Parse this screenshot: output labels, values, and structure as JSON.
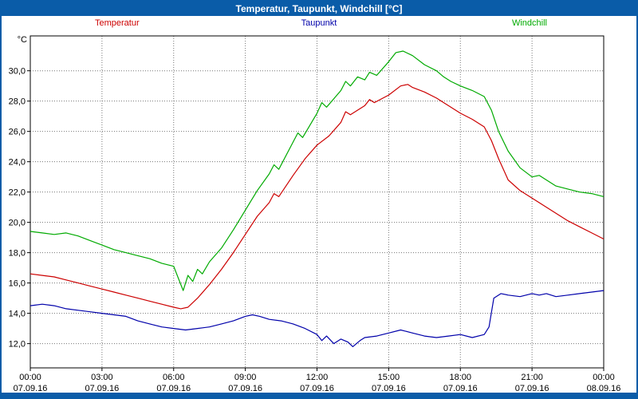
{
  "window": {
    "title": "Temperatur, Taupunkt, Windchill [°C]"
  },
  "colors": {
    "titlebar": "#0a5ca8",
    "border": "#0a5ca8",
    "grid": "#777777",
    "temperatur": "#cc0000",
    "taupunkt": "#0000aa",
    "windchill": "#00aa00"
  },
  "chart_data": {
    "type": "line",
    "title": "Temperatur, Taupunkt, Windchill [°C]",
    "ylabel": "°C",
    "xlabel": "",
    "grid": "dotted",
    "legend_position": "top",
    "ylim": [
      10.4,
      32.3
    ],
    "yticks": [
      12,
      14,
      16,
      18,
      20,
      22,
      24,
      26,
      28,
      30
    ],
    "ytick_labels": [
      "12,0",
      "14,0",
      "16,0",
      "18,0",
      "20,0",
      "22,0",
      "24,0",
      "26,0",
      "28,0",
      "30,0"
    ],
    "x_unit": "hours",
    "xlim": [
      0,
      24
    ],
    "xticks": [
      0,
      3,
      6,
      9,
      12,
      15,
      18,
      21,
      24
    ],
    "xtick_labels": [
      "00:00",
      "03:00",
      "06:00",
      "09:00",
      "12:00",
      "15:00",
      "18:00",
      "21:00",
      "00:00"
    ],
    "xtick_dates": [
      "07.09.16",
      "07.09.16",
      "07.09.16",
      "07.09.16",
      "07.09.16",
      "07.09.16",
      "07.09.16",
      "07.09.16",
      "08.09.16"
    ],
    "series": [
      {
        "name": "Temperatur",
        "color": "#cc0000",
        "points": [
          [
            0,
            16.6
          ],
          [
            0.5,
            16.5
          ],
          [
            1,
            16.4
          ],
          [
            1.5,
            16.2
          ],
          [
            2,
            16.0
          ],
          [
            2.5,
            15.8
          ],
          [
            3,
            15.6
          ],
          [
            3.5,
            15.4
          ],
          [
            4,
            15.2
          ],
          [
            4.5,
            15.0
          ],
          [
            5,
            14.8
          ],
          [
            5.5,
            14.6
          ],
          [
            6,
            14.4
          ],
          [
            6.3,
            14.3
          ],
          [
            6.6,
            14.4
          ],
          [
            7,
            15.0
          ],
          [
            7.5,
            15.9
          ],
          [
            8,
            16.9
          ],
          [
            8.5,
            18.0
          ],
          [
            9,
            19.2
          ],
          [
            9.5,
            20.4
          ],
          [
            10,
            21.3
          ],
          [
            10.2,
            21.9
          ],
          [
            10.4,
            21.7
          ],
          [
            11,
            23.1
          ],
          [
            11.5,
            24.2
          ],
          [
            12,
            25.1
          ],
          [
            12.5,
            25.7
          ],
          [
            13,
            26.6
          ],
          [
            13.2,
            27.3
          ],
          [
            13.4,
            27.1
          ],
          [
            14,
            27.7
          ],
          [
            14.2,
            28.1
          ],
          [
            14.4,
            27.9
          ],
          [
            15,
            28.4
          ],
          [
            15.5,
            29.0
          ],
          [
            15.8,
            29.1
          ],
          [
            16,
            28.9
          ],
          [
            16.5,
            28.6
          ],
          [
            17,
            28.2
          ],
          [
            17.5,
            27.7
          ],
          [
            18,
            27.2
          ],
          [
            18.5,
            26.8
          ],
          [
            19,
            26.3
          ],
          [
            19.3,
            25.4
          ],
          [
            19.6,
            24.2
          ],
          [
            20,
            22.8
          ],
          [
            20.5,
            22.1
          ],
          [
            21,
            21.6
          ],
          [
            21.5,
            21.1
          ],
          [
            22,
            20.6
          ],
          [
            22.5,
            20.1
          ],
          [
            23,
            19.7
          ],
          [
            23.5,
            19.3
          ],
          [
            24,
            18.9
          ]
        ]
      },
      {
        "name": "Taupunkt",
        "color": "#0000aa",
        "points": [
          [
            0,
            14.5
          ],
          [
            0.5,
            14.6
          ],
          [
            1,
            14.5
          ],
          [
            1.5,
            14.3
          ],
          [
            2,
            14.2
          ],
          [
            2.5,
            14.1
          ],
          [
            3,
            14.0
          ],
          [
            3.5,
            13.9
          ],
          [
            4,
            13.8
          ],
          [
            4.5,
            13.5
          ],
          [
            5,
            13.3
          ],
          [
            5.5,
            13.1
          ],
          [
            6,
            13.0
          ],
          [
            6.5,
            12.9
          ],
          [
            7,
            13.0
          ],
          [
            7.5,
            13.1
          ],
          [
            8,
            13.3
          ],
          [
            8.5,
            13.5
          ],
          [
            9,
            13.8
          ],
          [
            9.3,
            13.9
          ],
          [
            9.6,
            13.8
          ],
          [
            10,
            13.6
          ],
          [
            10.5,
            13.5
          ],
          [
            11,
            13.3
          ],
          [
            11.5,
            13.0
          ],
          [
            12,
            12.6
          ],
          [
            12.2,
            12.2
          ],
          [
            12.4,
            12.5
          ],
          [
            12.7,
            12.0
          ],
          [
            13,
            12.3
          ],
          [
            13.3,
            12.1
          ],
          [
            13.5,
            11.8
          ],
          [
            13.8,
            12.2
          ],
          [
            14,
            12.4
          ],
          [
            14.5,
            12.5
          ],
          [
            15,
            12.7
          ],
          [
            15.5,
            12.9
          ],
          [
            16,
            12.7
          ],
          [
            16.5,
            12.5
          ],
          [
            17,
            12.4
          ],
          [
            17.5,
            12.5
          ],
          [
            18,
            12.6
          ],
          [
            18.5,
            12.4
          ],
          [
            19,
            12.6
          ],
          [
            19.2,
            13.1
          ],
          [
            19.4,
            15.0
          ],
          [
            19.7,
            15.3
          ],
          [
            20,
            15.2
          ],
          [
            20.5,
            15.1
          ],
          [
            21,
            15.3
          ],
          [
            21.3,
            15.2
          ],
          [
            21.6,
            15.3
          ],
          [
            22,
            15.1
          ],
          [
            22.5,
            15.2
          ],
          [
            23,
            15.3
          ],
          [
            23.5,
            15.4
          ],
          [
            24,
            15.5
          ]
        ]
      },
      {
        "name": "Windchill",
        "color": "#00aa00",
        "points": [
          [
            0,
            19.4
          ],
          [
            0.5,
            19.3
          ],
          [
            1,
            19.2
          ],
          [
            1.5,
            19.3
          ],
          [
            2,
            19.1
          ],
          [
            2.5,
            18.8
          ],
          [
            3,
            18.5
          ],
          [
            3.5,
            18.2
          ],
          [
            4,
            18.0
          ],
          [
            4.5,
            17.8
          ],
          [
            5,
            17.6
          ],
          [
            5.5,
            17.3
          ],
          [
            6,
            17.1
          ],
          [
            6.2,
            16.3
          ],
          [
            6.4,
            15.5
          ],
          [
            6.6,
            16.5
          ],
          [
            6.8,
            16.1
          ],
          [
            7,
            16.9
          ],
          [
            7.2,
            16.6
          ],
          [
            7.5,
            17.4
          ],
          [
            8,
            18.3
          ],
          [
            8.5,
            19.5
          ],
          [
            9,
            20.8
          ],
          [
            9.5,
            22.1
          ],
          [
            10,
            23.2
          ],
          [
            10.2,
            23.8
          ],
          [
            10.4,
            23.5
          ],
          [
            11,
            25.3
          ],
          [
            11.2,
            25.9
          ],
          [
            11.4,
            25.6
          ],
          [
            12,
            27.2
          ],
          [
            12.2,
            27.9
          ],
          [
            12.4,
            27.6
          ],
          [
            13,
            28.7
          ],
          [
            13.2,
            29.3
          ],
          [
            13.4,
            29.0
          ],
          [
            13.7,
            29.6
          ],
          [
            14,
            29.4
          ],
          [
            14.2,
            29.9
          ],
          [
            14.5,
            29.7
          ],
          [
            15,
            30.6
          ],
          [
            15.3,
            31.2
          ],
          [
            15.6,
            31.3
          ],
          [
            16,
            31.0
          ],
          [
            16.5,
            30.4
          ],
          [
            17,
            30.0
          ],
          [
            17.3,
            29.6
          ],
          [
            17.6,
            29.3
          ],
          [
            18,
            29.0
          ],
          [
            18.5,
            28.7
          ],
          [
            19,
            28.3
          ],
          [
            19.3,
            27.4
          ],
          [
            19.6,
            26.0
          ],
          [
            20,
            24.7
          ],
          [
            20.5,
            23.6
          ],
          [
            21,
            23.0
          ],
          [
            21.3,
            23.1
          ],
          [
            21.6,
            22.8
          ],
          [
            22,
            22.4
          ],
          [
            22.5,
            22.2
          ],
          [
            23,
            22.0
          ],
          [
            23.5,
            21.9
          ],
          [
            24,
            21.7
          ]
        ]
      }
    ]
  }
}
